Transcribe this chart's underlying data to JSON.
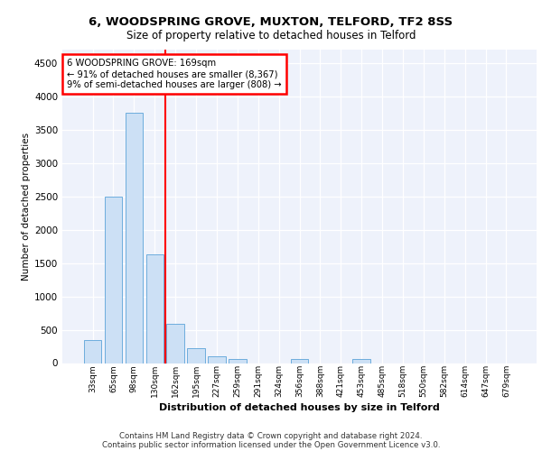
{
  "title1": "6, WOODSPRING GROVE, MUXTON, TELFORD, TF2 8SS",
  "title2": "Size of property relative to detached houses in Telford",
  "xlabel": "Distribution of detached houses by size in Telford",
  "ylabel": "Number of detached properties",
  "categories": [
    "33sqm",
    "65sqm",
    "98sqm",
    "130sqm",
    "162sqm",
    "195sqm",
    "227sqm",
    "259sqm",
    "291sqm",
    "324sqm",
    "356sqm",
    "388sqm",
    "421sqm",
    "453sqm",
    "485sqm",
    "518sqm",
    "550sqm",
    "582sqm",
    "614sqm",
    "647sqm",
    "679sqm"
  ],
  "values": [
    350,
    2500,
    3750,
    1630,
    590,
    220,
    100,
    60,
    0,
    0,
    60,
    0,
    0,
    60,
    0,
    0,
    0,
    0,
    0,
    0,
    0
  ],
  "bar_color": "#cce0f5",
  "bar_edge_color": "#5ba3d9",
  "vline_x_index": 3.5,
  "annotation_text": "6 WOODSPRING GROVE: 169sqm\n← 91% of detached houses are smaller (8,367)\n9% of semi-detached houses are larger (808) →",
  "annotation_box_color": "white",
  "annotation_box_edge": "red",
  "vline_color": "red",
  "footer1": "Contains HM Land Registry data © Crown copyright and database right 2024.",
  "footer2": "Contains public sector information licensed under the Open Government Licence v3.0.",
  "bg_color": "#eef2fb",
  "ylim": [
    0,
    4700
  ],
  "yticks": [
    0,
    500,
    1000,
    1500,
    2000,
    2500,
    3000,
    3500,
    4000,
    4500
  ]
}
